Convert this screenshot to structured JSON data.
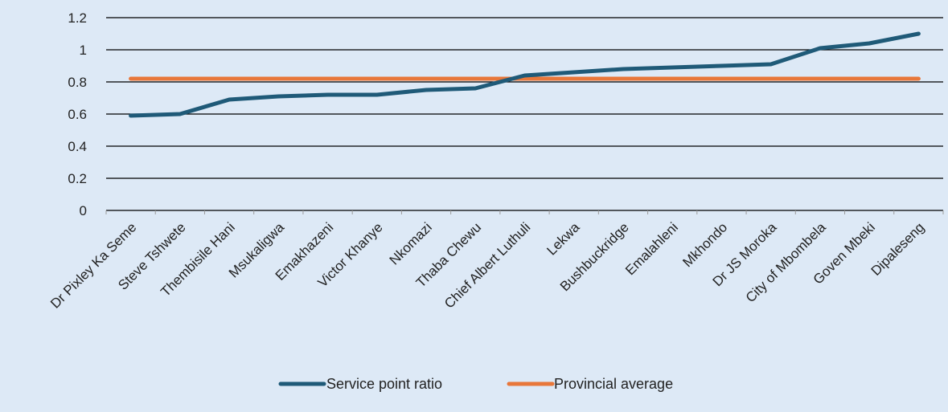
{
  "chart_data": {
    "type": "line",
    "categories": [
      "Dr Pixley Ka Seme",
      "Steve Tshwete",
      "Thembisile Hani",
      "Msukaligwa",
      "Emakhazeni",
      "Victor Khanye",
      "Nkomazi",
      "Thaba Chewu",
      "Chief Albert Luthuli",
      "Lekwa",
      "Bushbuckridge",
      "Emalahleni",
      "Mkhondo",
      "Dr JS Moroka",
      "City of Mbombela",
      "Goven Mbeki",
      "Dipaleseng"
    ],
    "series": [
      {
        "name": "Service point ratio",
        "color": "#1f5a78",
        "values": [
          0.59,
          0.6,
          0.69,
          0.71,
          0.72,
          0.72,
          0.75,
          0.76,
          0.84,
          0.86,
          0.88,
          0.89,
          0.9,
          0.91,
          1.01,
          1.04,
          1.1
        ]
      },
      {
        "name": "Provincial average",
        "color": "#e8773a",
        "values": [
          0.82,
          0.82,
          0.82,
          0.82,
          0.82,
          0.82,
          0.82,
          0.82,
          0.82,
          0.82,
          0.82,
          0.82,
          0.82,
          0.82,
          0.82,
          0.82,
          0.82
        ]
      }
    ],
    "ylim": [
      0,
      1.2
    ],
    "yticks": [
      "0",
      "0.2",
      "0.4",
      "0.6",
      "0.8",
      "1",
      "1.2"
    ],
    "grid": true,
    "legend_position": "bottom"
  }
}
